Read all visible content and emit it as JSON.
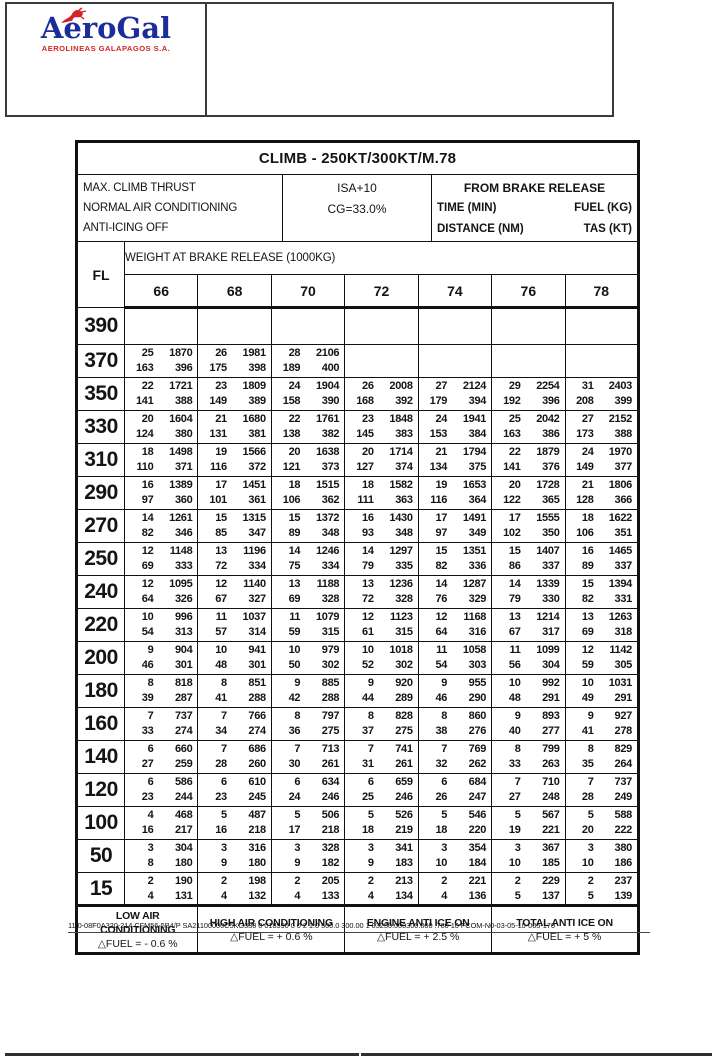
{
  "letterhead": {
    "logo_title": "AeroGal",
    "logo_subtitle": "AEROLINEAS GALAPAGOS S.A.",
    "logo_blue": "#1b2d9b",
    "logo_red": "#d42427"
  },
  "table": {
    "title": "CLIMB - 250KT/300KT/M.78",
    "conditions": [
      "MAX. CLIMB THRUST",
      "NORMAL AIR CONDITIONING",
      "ANTI-ICING OFF"
    ],
    "atmosphere": {
      "isa": "ISA+10",
      "cg": "CG=33.0%"
    },
    "brake_release": {
      "title": "FROM BRAKE RELEASE",
      "time_label": "TIME (MIN)",
      "fuel_label": "FUEL (KG)",
      "distance_label": "DISTANCE (NM)",
      "tas_label": "TAS (KT)"
    },
    "weight_band_label": "WEIGHT AT BRAKE RELEASE (1000KG)",
    "fl_label": "FL",
    "weights": [
      "66",
      "68",
      "70",
      "72",
      "74",
      "76",
      "78"
    ],
    "cell_value_order": [
      "time_min",
      "fuel_kg",
      "distance_nm",
      "tas_kt"
    ],
    "rows": [
      {
        "fl": "390",
        "cells": [
          null,
          null,
          null,
          null,
          null,
          null,
          null
        ]
      },
      {
        "fl": "370",
        "cells": [
          [
            25,
            1870,
            163,
            396
          ],
          [
            26,
            1981,
            175,
            398
          ],
          [
            28,
            2106,
            189,
            400
          ],
          null,
          null,
          null,
          null
        ]
      },
      {
        "fl": "350",
        "cells": [
          [
            22,
            1721,
            141,
            388
          ],
          [
            23,
            1809,
            149,
            389
          ],
          [
            24,
            1904,
            158,
            390
          ],
          [
            26,
            2008,
            168,
            392
          ],
          [
            27,
            2124,
            179,
            394
          ],
          [
            29,
            2254,
            192,
            396
          ],
          [
            31,
            2403,
            208,
            399
          ]
        ]
      },
      {
        "fl": "330",
        "cells": [
          [
            20,
            1604,
            124,
            380
          ],
          [
            21,
            1680,
            131,
            381
          ],
          [
            22,
            1761,
            138,
            382
          ],
          [
            23,
            1848,
            145,
            383
          ],
          [
            24,
            1941,
            153,
            384
          ],
          [
            25,
            2042,
            163,
            386
          ],
          [
            27,
            2152,
            173,
            388
          ]
        ]
      },
      {
        "fl": "310",
        "cells": [
          [
            18,
            1498,
            110,
            371
          ],
          [
            19,
            1566,
            116,
            372
          ],
          [
            20,
            1638,
            121,
            373
          ],
          [
            20,
            1714,
            127,
            374
          ],
          [
            21,
            1794,
            134,
            375
          ],
          [
            22,
            1879,
            141,
            376
          ],
          [
            24,
            1970,
            149,
            377
          ]
        ]
      },
      {
        "fl": "290",
        "cells": [
          [
            16,
            1389,
            97,
            360
          ],
          [
            17,
            1451,
            101,
            361
          ],
          [
            18,
            1515,
            106,
            362
          ],
          [
            18,
            1582,
            111,
            363
          ],
          [
            19,
            1653,
            116,
            364
          ],
          [
            20,
            1728,
            122,
            365
          ],
          [
            21,
            1806,
            128,
            366
          ]
        ]
      },
      {
        "fl": "270",
        "cells": [
          [
            14,
            1261,
            82,
            346
          ],
          [
            15,
            1315,
            85,
            347
          ],
          [
            15,
            1372,
            89,
            348
          ],
          [
            16,
            1430,
            93,
            348
          ],
          [
            17,
            1491,
            97,
            349
          ],
          [
            17,
            1555,
            102,
            350
          ],
          [
            18,
            1622,
            106,
            351
          ]
        ]
      },
      {
        "fl": "250",
        "cells": [
          [
            12,
            1148,
            69,
            333
          ],
          [
            13,
            1196,
            72,
            334
          ],
          [
            14,
            1246,
            75,
            334
          ],
          [
            14,
            1297,
            79,
            335
          ],
          [
            15,
            1351,
            82,
            336
          ],
          [
            15,
            1407,
            86,
            337
          ],
          [
            16,
            1465,
            89,
            337
          ]
        ]
      },
      {
        "fl": "240",
        "cells": [
          [
            12,
            1095,
            64,
            326
          ],
          [
            12,
            1140,
            67,
            327
          ],
          [
            13,
            1188,
            69,
            328
          ],
          [
            13,
            1236,
            72,
            328
          ],
          [
            14,
            1287,
            76,
            329
          ],
          [
            14,
            1339,
            79,
            330
          ],
          [
            15,
            1394,
            82,
            331
          ]
        ]
      },
      {
        "fl": "220",
        "cells": [
          [
            10,
            996,
            54,
            313
          ],
          [
            11,
            1037,
            57,
            314
          ],
          [
            11,
            1079,
            59,
            315
          ],
          [
            12,
            1123,
            61,
            315
          ],
          [
            12,
            1168,
            64,
            316
          ],
          [
            13,
            1214,
            67,
            317
          ],
          [
            13,
            1263,
            69,
            318
          ]
        ]
      },
      {
        "fl": "200",
        "cells": [
          [
            9,
            904,
            46,
            301
          ],
          [
            10,
            941,
            48,
            301
          ],
          [
            10,
            979,
            50,
            302
          ],
          [
            10,
            1018,
            52,
            302
          ],
          [
            11,
            1058,
            54,
            303
          ],
          [
            11,
            1099,
            56,
            304
          ],
          [
            12,
            1142,
            59,
            305
          ]
        ]
      },
      {
        "fl": "180",
        "cells": [
          [
            8,
            818,
            39,
            287
          ],
          [
            8,
            851,
            41,
            288
          ],
          [
            9,
            885,
            42,
            288
          ],
          [
            9,
            920,
            44,
            289
          ],
          [
            9,
            955,
            46,
            290
          ],
          [
            10,
            992,
            48,
            291
          ],
          [
            10,
            1031,
            49,
            291
          ]
        ]
      },
      {
        "fl": "160",
        "cells": [
          [
            7,
            737,
            33,
            274
          ],
          [
            7,
            766,
            34,
            274
          ],
          [
            8,
            797,
            36,
            275
          ],
          [
            8,
            828,
            37,
            275
          ],
          [
            8,
            860,
            38,
            276
          ],
          [
            9,
            893,
            40,
            277
          ],
          [
            9,
            927,
            41,
            278
          ]
        ]
      },
      {
        "fl": "140",
        "cells": [
          [
            6,
            660,
            27,
            259
          ],
          [
            7,
            686,
            28,
            260
          ],
          [
            7,
            713,
            30,
            261
          ],
          [
            7,
            741,
            31,
            261
          ],
          [
            7,
            769,
            32,
            262
          ],
          [
            8,
            799,
            33,
            263
          ],
          [
            8,
            829,
            35,
            264
          ]
        ]
      },
      {
        "fl": "120",
        "cells": [
          [
            6,
            586,
            23,
            244
          ],
          [
            6,
            610,
            23,
            245
          ],
          [
            6,
            634,
            24,
            246
          ],
          [
            6,
            659,
            25,
            246
          ],
          [
            6,
            684,
            26,
            247
          ],
          [
            7,
            710,
            27,
            248
          ],
          [
            7,
            737,
            28,
            249
          ]
        ]
      },
      {
        "fl": "100",
        "cells": [
          [
            4,
            468,
            16,
            217
          ],
          [
            5,
            487,
            16,
            218
          ],
          [
            5,
            506,
            17,
            218
          ],
          [
            5,
            526,
            18,
            219
          ],
          [
            5,
            546,
            18,
            220
          ],
          [
            5,
            567,
            19,
            221
          ],
          [
            5,
            588,
            20,
            222
          ]
        ]
      },
      {
        "fl": "50",
        "cells": [
          [
            3,
            304,
            8,
            180
          ],
          [
            3,
            316,
            9,
            180
          ],
          [
            3,
            328,
            9,
            182
          ],
          [
            3,
            341,
            9,
            183
          ],
          [
            3,
            354,
            10,
            184
          ],
          [
            3,
            367,
            10,
            185
          ],
          [
            3,
            380,
            10,
            186
          ]
        ]
      },
      {
        "fl": "15",
        "cells": [
          [
            2,
            190,
            4,
            131
          ],
          [
            2,
            198,
            4,
            132
          ],
          [
            2,
            205,
            4,
            133
          ],
          [
            2,
            213,
            4,
            134
          ],
          [
            2,
            221,
            4,
            136
          ],
          [
            2,
            229,
            5,
            137
          ],
          [
            2,
            237,
            5,
            139
          ]
        ]
      }
    ],
    "corrections": [
      {
        "label": "LOW AIR CONDITIONING",
        "value": "△FUEL = - 0.6 %"
      },
      {
        "label": "HIGH AIR CONDITIONING",
        "value": "△FUEL = + 0.6 %"
      },
      {
        "label": "ENGINE ANTI ICE ON",
        "value": "△FUEL = + 2.5 %"
      },
      {
        "label": "TOTAL ANTI ICE ON",
        "value": "△FUEL = + 5 %"
      }
    ]
  },
  "fine_print": "11.0-08F0A320-214 CFM56-5B4/P SA21100000C5KG330 0 018590 0 0 2 1.0 500.0 300.00 1 03250.000300.000 .780 10 FCOM-N0-03-05-10-005-170"
}
